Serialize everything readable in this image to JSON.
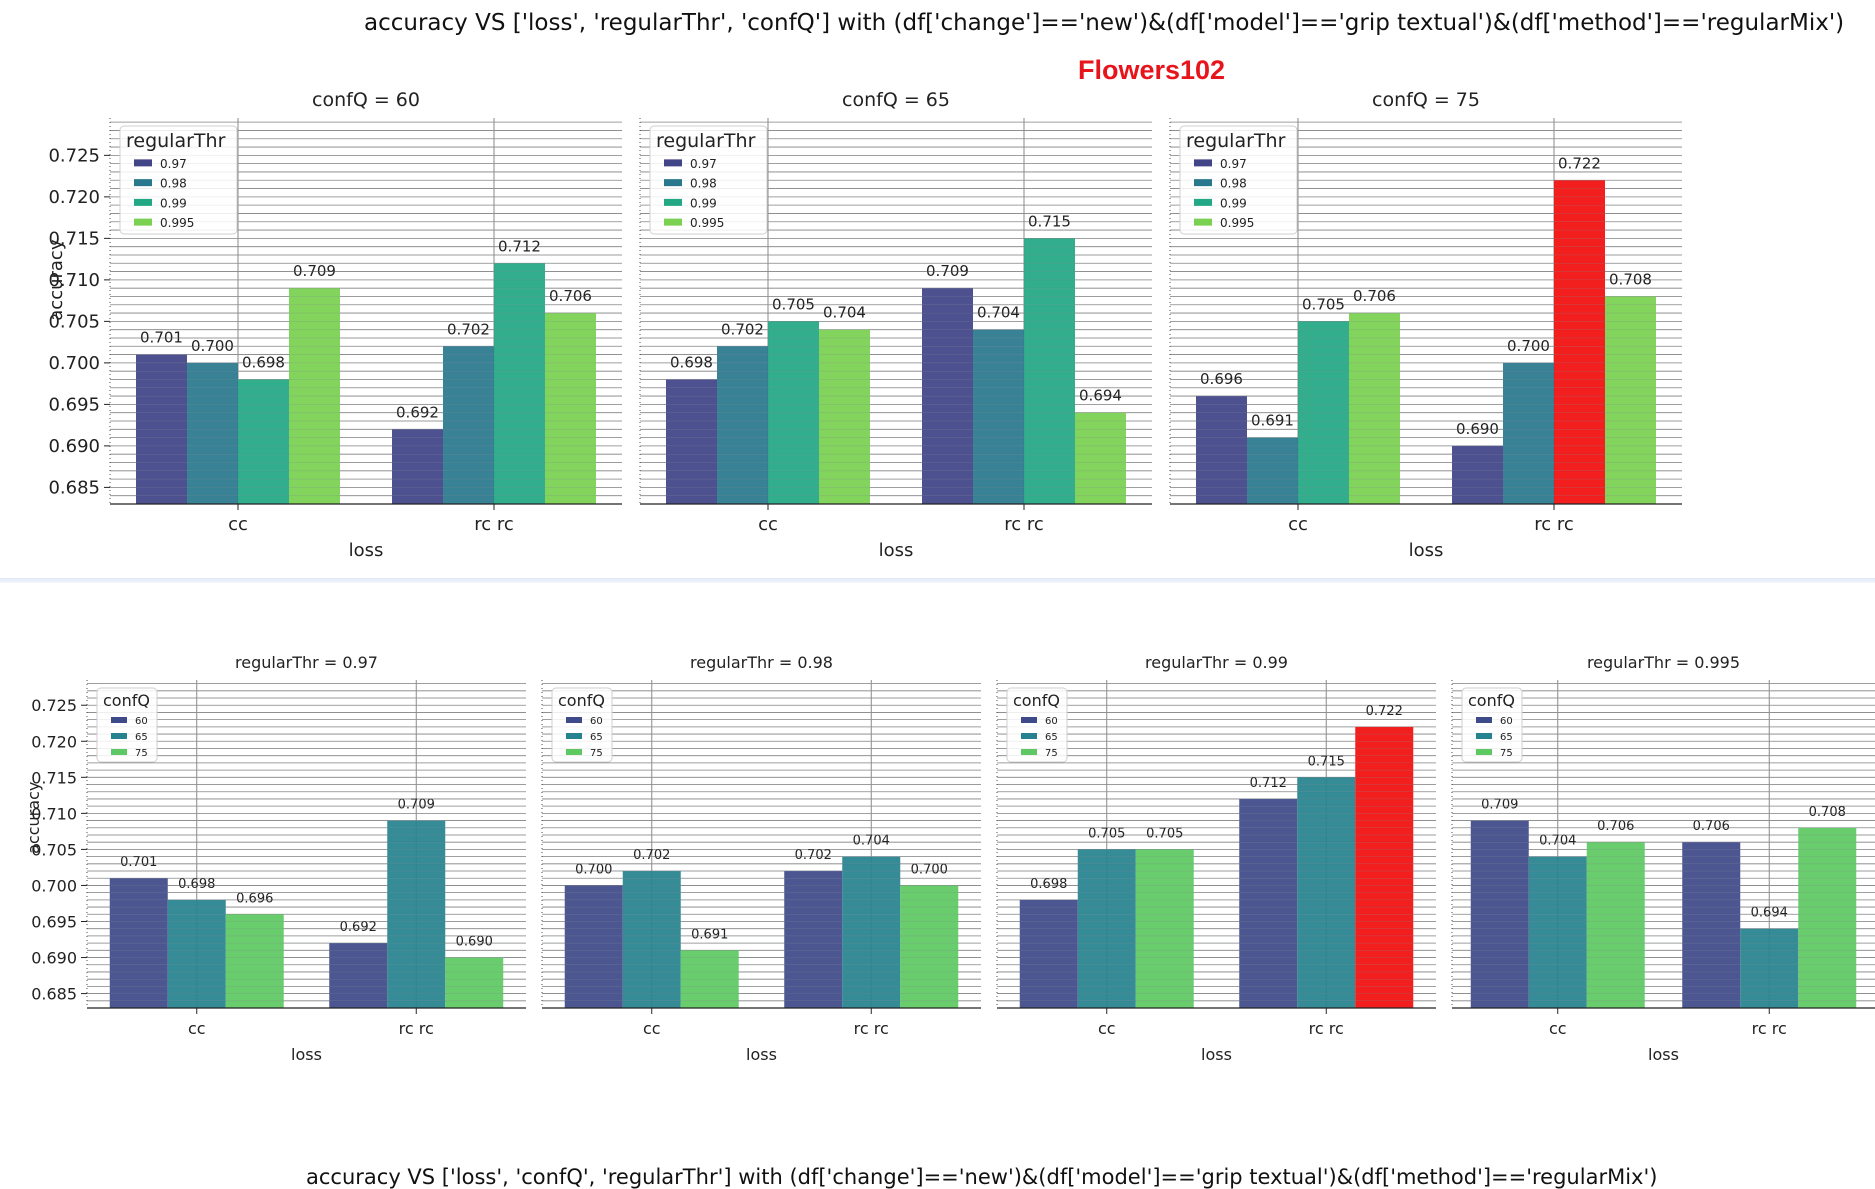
{
  "top": {
    "title": "accuracy VS ['loss', 'regularThr', 'confQ'] with (df['change']=='new')&(df['model']=='grip textual')&(df['method']=='regularMix')",
    "dataset": "Flowers102"
  },
  "bottom": {
    "title": "accuracy VS ['loss', 'confQ', 'regularThr'] with (df['change']=='new')&(df['model']=='grip textual')&(df['method']=='regularMix')"
  },
  "chart_data": [
    {
      "type": "bar",
      "panel": "top-1",
      "title": "confQ = 60",
      "xlabel": "loss",
      "ylabel": "accuracy",
      "ylim": [
        0.683,
        0.7295
      ],
      "categories": [
        "cc",
        "rc rc"
      ],
      "yticks": [
        "0.685",
        "0.690",
        "0.695",
        "0.700",
        "0.705",
        "0.710",
        "0.715",
        "0.720",
        "0.725"
      ],
      "legend": {
        "title": "regularThr",
        "position": "top-left"
      },
      "series": [
        {
          "name": "0.97",
          "values": [
            0.701,
            0.692
          ]
        },
        {
          "name": "0.98",
          "values": [
            0.7,
            0.702
          ]
        },
        {
          "name": "0.99",
          "values": [
            0.698,
            0.712
          ]
        },
        {
          "name": "0.995",
          "values": [
            0.709,
            0.706
          ]
        }
      ],
      "highlight": null
    },
    {
      "type": "bar",
      "panel": "top-2",
      "title": "confQ = 65",
      "xlabel": "loss",
      "ylabel": "",
      "ylim": [
        0.683,
        0.7295
      ],
      "categories": [
        "cc",
        "rc rc"
      ],
      "yticks": [],
      "legend": {
        "title": "regularThr",
        "position": "top-left"
      },
      "series": [
        {
          "name": "0.97",
          "values": [
            0.698,
            0.709
          ]
        },
        {
          "name": "0.98",
          "values": [
            0.702,
            0.704
          ]
        },
        {
          "name": "0.99",
          "values": [
            0.705,
            0.715
          ]
        },
        {
          "name": "0.995",
          "values": [
            0.704,
            0.694
          ]
        }
      ],
      "highlight": null
    },
    {
      "type": "bar",
      "panel": "top-3",
      "title": "confQ = 75",
      "xlabel": "loss",
      "ylabel": "",
      "ylim": [
        0.683,
        0.7295
      ],
      "categories": [
        "cc",
        "rc rc"
      ],
      "yticks": [],
      "legend": {
        "title": "regularThr",
        "position": "top-left"
      },
      "series": [
        {
          "name": "0.97",
          "values": [
            0.696,
            0.69
          ]
        },
        {
          "name": "0.98",
          "values": [
            0.691,
            0.7
          ]
        },
        {
          "name": "0.99",
          "values": [
            0.705,
            0.722
          ]
        },
        {
          "name": "0.995",
          "values": [
            0.706,
            0.708
          ]
        }
      ],
      "highlight": {
        "series": 2,
        "category": 1,
        "color": "#f20d0d"
      }
    },
    {
      "type": "bar",
      "panel": "bottom-1",
      "title": "regularThr = 0.97",
      "xlabel": "loss",
      "ylabel": "accuracy",
      "ylim": [
        0.683,
        0.7285
      ],
      "categories": [
        "cc",
        "rc rc"
      ],
      "yticks": [
        "0.685",
        "0.690",
        "0.695",
        "0.700",
        "0.705",
        "0.710",
        "0.715",
        "0.720",
        "0.725"
      ],
      "legend": {
        "title": "confQ",
        "position": "top-left"
      },
      "series": [
        {
          "name": "60",
          "values": [
            0.701,
            0.692
          ]
        },
        {
          "name": "65",
          "values": [
            0.698,
            0.709
          ]
        },
        {
          "name": "75",
          "values": [
            0.696,
            0.69
          ]
        }
      ],
      "highlight": null
    },
    {
      "type": "bar",
      "panel": "bottom-2",
      "title": "regularThr = 0.98",
      "xlabel": "loss",
      "ylabel": "",
      "ylim": [
        0.683,
        0.7285
      ],
      "categories": [
        "cc",
        "rc rc"
      ],
      "yticks": [],
      "legend": {
        "title": "confQ",
        "position": "top-left"
      },
      "series": [
        {
          "name": "60",
          "values": [
            0.7,
            0.702
          ]
        },
        {
          "name": "65",
          "values": [
            0.702,
            0.704
          ]
        },
        {
          "name": "75",
          "values": [
            0.691,
            0.7
          ]
        }
      ],
      "highlight": null
    },
    {
      "type": "bar",
      "panel": "bottom-3",
      "title": "regularThr = 0.99",
      "xlabel": "loss",
      "ylabel": "",
      "ylim": [
        0.683,
        0.7285
      ],
      "categories": [
        "cc",
        "rc rc"
      ],
      "yticks": [],
      "legend": {
        "title": "confQ",
        "position": "top-left"
      },
      "series": [
        {
          "name": "60",
          "values": [
            0.698,
            0.712
          ]
        },
        {
          "name": "65",
          "values": [
            0.705,
            0.715
          ]
        },
        {
          "name": "75",
          "values": [
            0.705,
            0.722
          ]
        }
      ],
      "highlight": {
        "series": 2,
        "category": 1,
        "color": "#f20d0d"
      }
    },
    {
      "type": "bar",
      "panel": "bottom-4",
      "title": "regularThr = 0.995",
      "xlabel": "loss",
      "ylabel": "",
      "ylim": [
        0.683,
        0.7285
      ],
      "categories": [
        "cc",
        "rc rc"
      ],
      "yticks": [],
      "legend": {
        "title": "confQ",
        "position": "top-left"
      },
      "series": [
        {
          "name": "60",
          "values": [
            0.709,
            0.706
          ]
        },
        {
          "name": "65",
          "values": [
            0.704,
            0.694
          ]
        },
        {
          "name": "75",
          "values": [
            0.706,
            0.708
          ]
        }
      ],
      "highlight": null
    }
  ],
  "palettes": {
    "four": [
      "#414487",
      "#2a788e",
      "#22a884",
      "#7ad151"
    ],
    "three": [
      "#3e4a89",
      "#26828e",
      "#5ec962"
    ]
  }
}
